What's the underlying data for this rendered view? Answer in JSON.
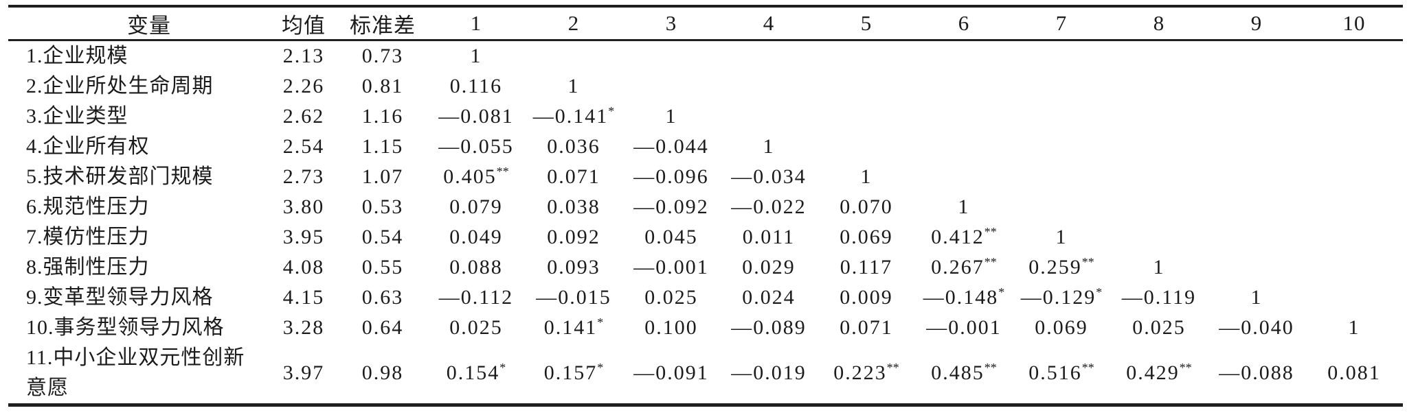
{
  "table": {
    "headers": {
      "variable": "变量",
      "mean": "均值",
      "sd": "标准差",
      "nums": [
        "1",
        "2",
        "3",
        "4",
        "5",
        "6",
        "7",
        "8",
        "9",
        "10"
      ]
    },
    "rows": [
      {
        "label": "1.企业规模",
        "mean": "2.13",
        "sd": "0.73",
        "cells": [
          "1",
          "",
          "",
          "",
          "",
          "",
          "",
          "",
          "",
          ""
        ]
      },
      {
        "label": "2.企业所处生命周期",
        "mean": "2.26",
        "sd": "0.81",
        "cells": [
          "0.116",
          "1",
          "",
          "",
          "",
          "",
          "",
          "",
          "",
          ""
        ]
      },
      {
        "label": "3.企业类型",
        "mean": "2.62",
        "sd": "1.16",
        "cells": [
          "—0.081",
          "—0.141*",
          "1",
          "",
          "",
          "",
          "",
          "",
          "",
          ""
        ]
      },
      {
        "label": "4.企业所有权",
        "mean": "2.54",
        "sd": "1.15",
        "cells": [
          "—0.055",
          "0.036",
          "—0.044",
          "1",
          "",
          "",
          "",
          "",
          "",
          ""
        ]
      },
      {
        "label": "5.技术研发部门规模",
        "mean": "2.73",
        "sd": "1.07",
        "cells": [
          "0.405**",
          "0.071",
          "—0.096",
          "—0.034",
          "1",
          "",
          "",
          "",
          "",
          ""
        ]
      },
      {
        "label": "6.规范性压力",
        "mean": "3.80",
        "sd": "0.53",
        "cells": [
          "0.079",
          "0.038",
          "—0.092",
          "—0.022",
          "0.070",
          "1",
          "",
          "",
          "",
          ""
        ]
      },
      {
        "label": "7.模仿性压力",
        "mean": "3.95",
        "sd": "0.54",
        "cells": [
          "0.049",
          "0.092",
          "0.045",
          "0.011",
          "0.069",
          "0.412**",
          "1",
          "",
          "",
          ""
        ]
      },
      {
        "label": "8.强制性压力",
        "mean": "4.08",
        "sd": "0.55",
        "cells": [
          "0.088",
          "0.093",
          "—0.001",
          "0.029",
          "0.117",
          "0.267**",
          "0.259**",
          "1",
          "",
          ""
        ]
      },
      {
        "label": "9.变革型领导力风格",
        "mean": "4.15",
        "sd": "0.63",
        "cells": [
          "—0.112",
          "—0.015",
          "0.025",
          "0.024",
          "0.009",
          "—0.148*",
          "—0.129*",
          "—0.119",
          "1",
          ""
        ]
      },
      {
        "label": "10.事务型领导力风格",
        "mean": "3.28",
        "sd": "0.64",
        "cells": [
          "0.025",
          "0.141*",
          "0.100",
          "—0.089",
          "0.071",
          "—0.001",
          "0.069",
          "0.025",
          "—0.040",
          "1"
        ]
      },
      {
        "label": "11.中小企业双元性创新\n意愿",
        "mean": "3.97",
        "sd": "0.98",
        "cells": [
          "0.154*",
          "0.157*",
          "—0.091",
          "—0.019",
          "0.223**",
          "0.485**",
          "0.516**",
          "0.429**",
          "—0.088",
          "0.081"
        ]
      }
    ]
  }
}
